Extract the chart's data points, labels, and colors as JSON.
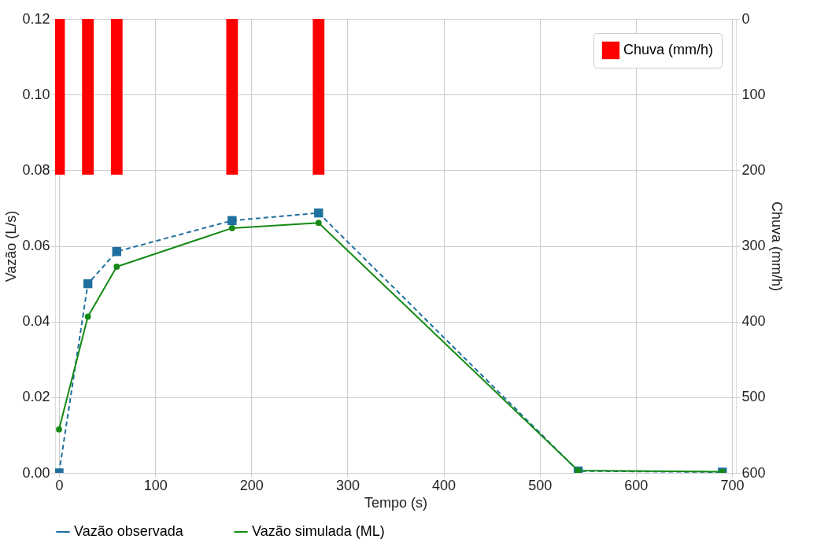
{
  "chart_data": {
    "type": "line",
    "xlabel": "Tempo (s)",
    "ylabel": "Vazão (L/s)",
    "y2label": "Chuva (mm/h)",
    "xlim": [
      0,
      700
    ],
    "xticks": [
      0,
      100,
      200,
      300,
      400,
      500,
      600,
      700
    ],
    "ylim": [
      0,
      0.12
    ],
    "yticks": [
      {
        "value": 0,
        "label": "0.00"
      },
      {
        "value": 0.02,
        "label": "0.02"
      },
      {
        "value": 0.04,
        "label": "0.04"
      },
      {
        "value": 0.06,
        "label": "0.06"
      },
      {
        "value": 0.08,
        "label": "0.08"
      },
      {
        "value": 0.1,
        "label": "0.10"
      },
      {
        "value": 0.12,
        "label": "0.12"
      }
    ],
    "y2lim": [
      600,
      0
    ],
    "y2ticks": [
      0,
      100,
      200,
      300,
      400,
      500,
      600
    ],
    "grid": true,
    "legend": "bottom",
    "series": [
      {
        "name": "Vazão observada",
        "color": "#1f6f9f",
        "marker": "square",
        "line_style": "dashed",
        "x": [
          0,
          30,
          60,
          180,
          270,
          540,
          690
        ],
        "values": [
          0.0,
          0.05,
          0.0585,
          0.0667,
          0.0687,
          0.0005,
          0.0002
        ]
      },
      {
        "name": "Vazão simulada (ML)",
        "color": "#148a14",
        "marker": "circle",
        "line_style": "solid",
        "x": [
          0,
          30,
          60,
          180,
          270,
          540,
          690
        ],
        "values": [
          0.0115,
          0.0413,
          0.0545,
          0.0647,
          0.0661,
          0.0006,
          0.0003
        ]
      },
      {
        "name": "Chuva (mm/h)",
        "type": "bar",
        "axis": "y2",
        "color": "#ff0000",
        "x": [
          0,
          30,
          60,
          180,
          270
        ],
        "values": [
          206,
          206,
          206,
          206,
          206
        ]
      }
    ]
  }
}
